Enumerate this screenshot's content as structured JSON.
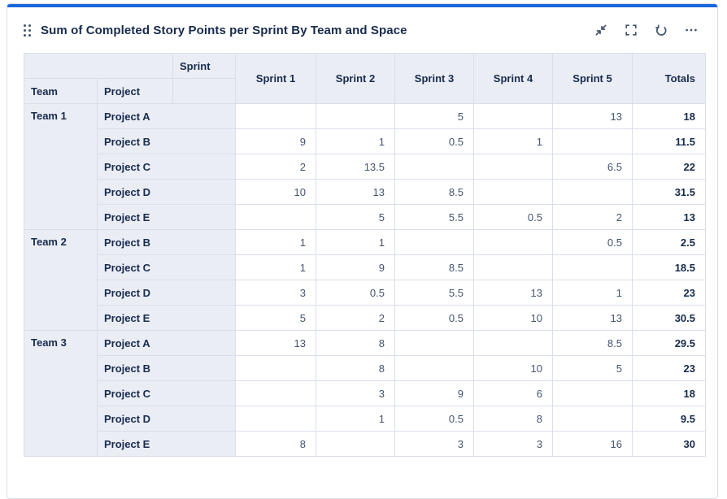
{
  "widget": {
    "title": "Sum of Completed Story Points per Sprint By Team and Space",
    "accent_color": "#1868db",
    "toolbar_icons": [
      "collapse-icon",
      "fullscreen-icon",
      "refresh-icon",
      "ellipsis-icon"
    ]
  },
  "colors": {
    "accent": "#1868db",
    "header_bg": "#ebedf5",
    "border": "#d9deea",
    "value_text": "#44546f",
    "dark_text": "#172b4d"
  },
  "table": {
    "corner": {
      "sprint": "Sprint",
      "team": "Team",
      "project": "Project"
    },
    "sprint_columns": [
      "Sprint 1",
      "Sprint 2",
      "Sprint 3",
      "Sprint 4",
      "Sprint 5"
    ],
    "totals_label": "Totals",
    "groups": [
      {
        "team": "Team 1",
        "rows": [
          {
            "project": "Project A",
            "values": [
              "",
              "",
              "5",
              "",
              "13"
            ],
            "total": "18"
          },
          {
            "project": "Project B",
            "values": [
              "9",
              "1",
              "0.5",
              "1",
              ""
            ],
            "total": "11.5"
          },
          {
            "project": "Project C",
            "values": [
              "2",
              "13.5",
              "",
              "",
              "6.5"
            ],
            "total": "22"
          },
          {
            "project": "Project D",
            "values": [
              "10",
              "13",
              "8.5",
              "",
              ""
            ],
            "total": "31.5"
          },
          {
            "project": "Project E",
            "values": [
              "",
              "5",
              "5.5",
              "0.5",
              "2"
            ],
            "total": "13"
          }
        ]
      },
      {
        "team": "Team 2",
        "rows": [
          {
            "project": "Project B",
            "values": [
              "1",
              "1",
              "",
              "",
              "0.5"
            ],
            "total": "2.5"
          },
          {
            "project": "Project C",
            "values": [
              "1",
              "9",
              "8.5",
              "",
              ""
            ],
            "total": "18.5"
          },
          {
            "project": "Project D",
            "values": [
              "3",
              "0.5",
              "5.5",
              "13",
              "1"
            ],
            "total": "23"
          },
          {
            "project": "Project E",
            "values": [
              "5",
              "2",
              "0.5",
              "10",
              "13"
            ],
            "total": "30.5"
          }
        ]
      },
      {
        "team": "Team 3",
        "rows": [
          {
            "project": "Project A",
            "values": [
              "13",
              "8",
              "",
              "",
              "8.5"
            ],
            "total": "29.5"
          },
          {
            "project": "Project B",
            "values": [
              "",
              "8",
              "",
              "10",
              "5"
            ],
            "total": "23"
          },
          {
            "project": "Project C",
            "values": [
              "",
              "3",
              "9",
              "6",
              ""
            ],
            "total": "18"
          },
          {
            "project": "Project D",
            "values": [
              "",
              "1",
              "0.5",
              "8",
              ""
            ],
            "total": "9.5"
          },
          {
            "project": "Project E",
            "values": [
              "8",
              "",
              "3",
              "3",
              "16"
            ],
            "total": "30"
          }
        ]
      }
    ]
  }
}
